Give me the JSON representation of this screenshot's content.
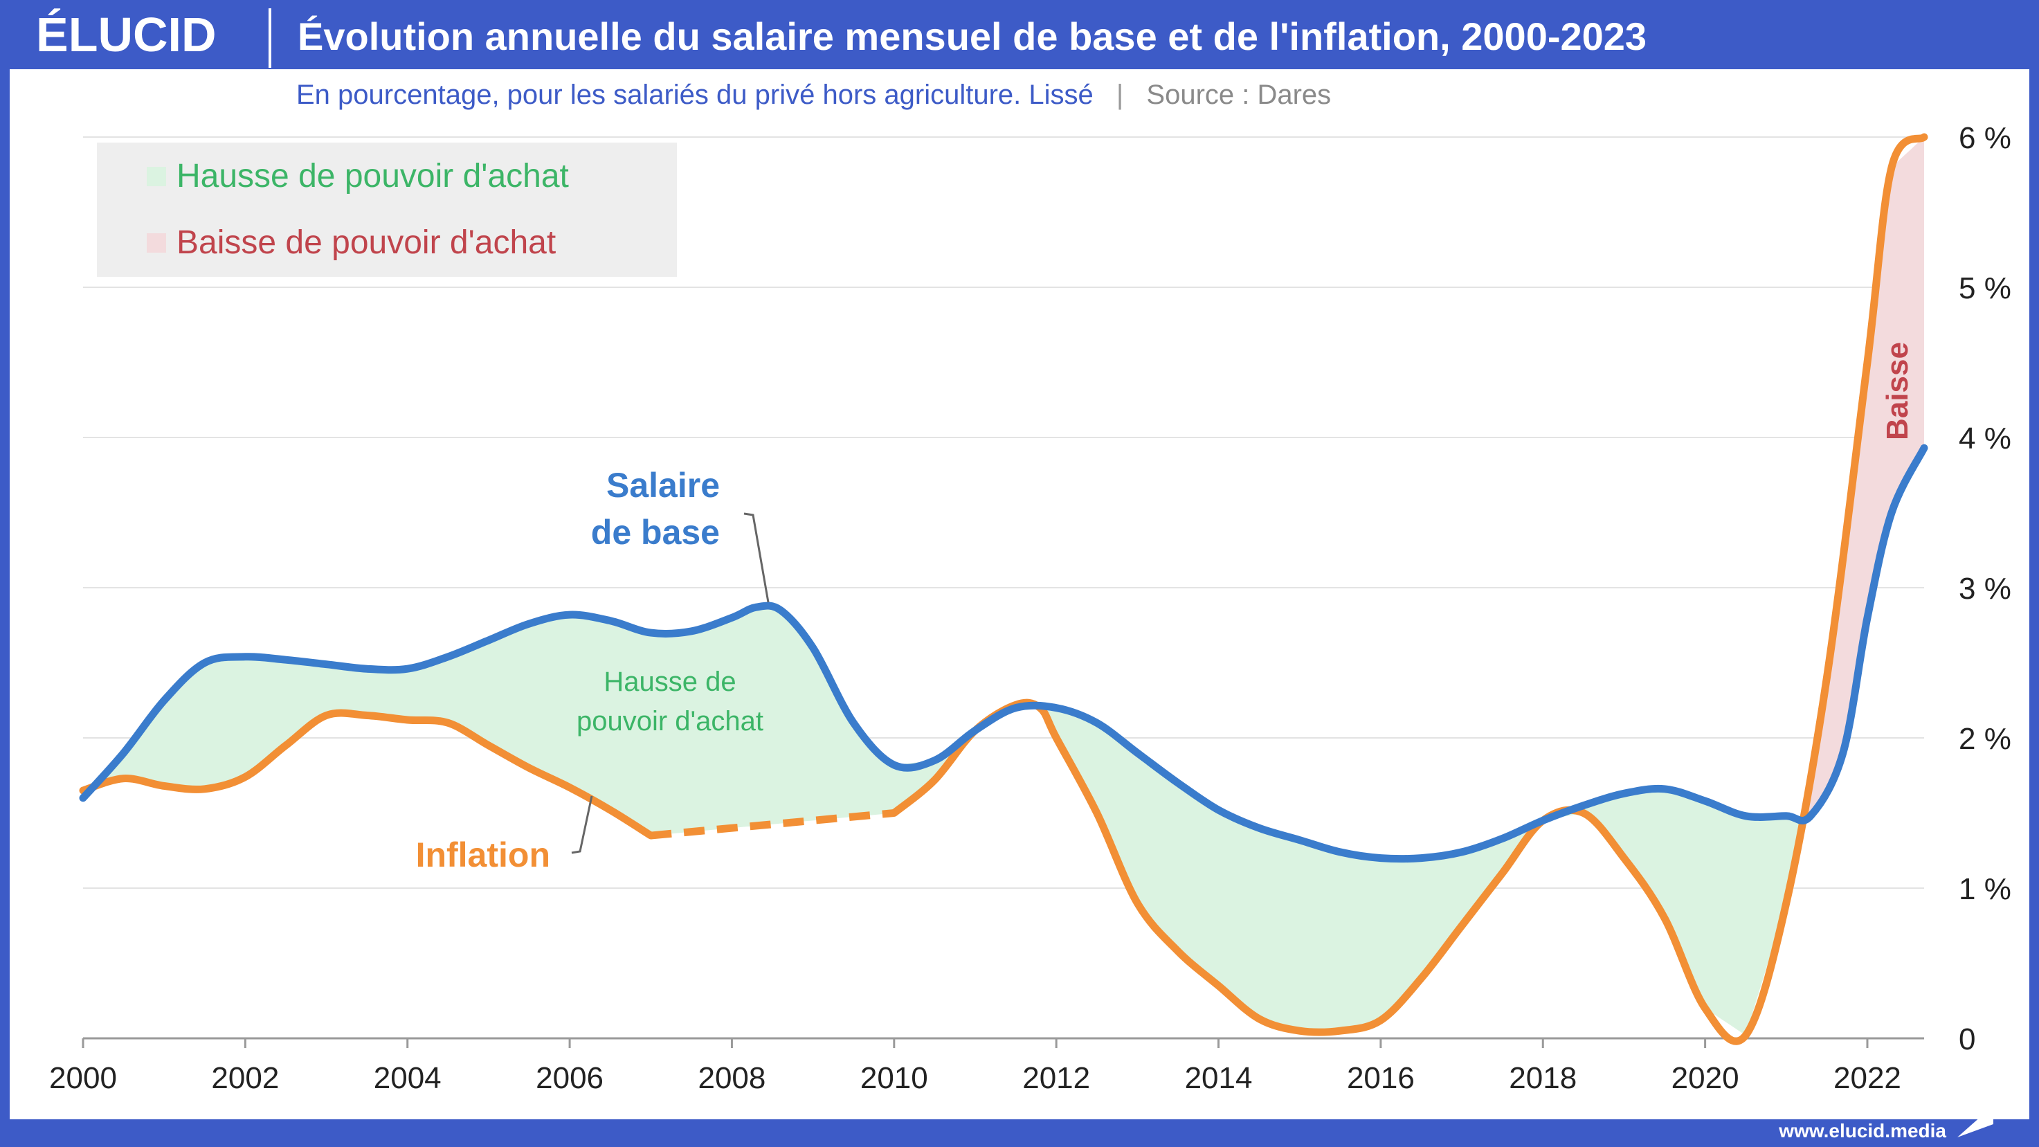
{
  "header": {
    "logo": "ÉLUCID",
    "title": "Évolution annuelle du salaire mensuel de base et de l'inflation, 2000-2023",
    "subtitle": "En pourcentage, pour les salariés du privé hors agriculture. Lissé",
    "separator": "|",
    "source": "Source : Dares"
  },
  "footer": {
    "url": "www.elucid.media"
  },
  "colors": {
    "frame": "#3d5bc7",
    "salary": "#3a7ccc",
    "inflation": "#f28f35",
    "gain_text": "#3cb567",
    "gain_fill": "#dbf3e1",
    "loss_text": "#c0444c",
    "loss_fill": "#f3dbdd",
    "legend_bg": "#eeeeee",
    "grid": "#e3e3e3"
  },
  "chart_data": {
    "type": "line",
    "title": "Évolution annuelle du salaire mensuel de base et de l'inflation, 2000-2023",
    "xlabel": "",
    "ylabel": "",
    "xlim": [
      2000,
      2022.7
    ],
    "ylim": [
      0,
      6
    ],
    "x_ticks": [
      2000,
      2002,
      2004,
      2006,
      2008,
      2010,
      2012,
      2014,
      2016,
      2018,
      2020,
      2022
    ],
    "y_ticks": [
      0,
      1,
      2,
      3,
      4,
      5,
      6
    ],
    "y_tick_labels": [
      "0",
      "1 %",
      "2 %",
      "3 %",
      "4 %",
      "5 %",
      "6 %"
    ],
    "grid": true,
    "legend_position": "top-left",
    "legend": [
      {
        "label": "Hausse de pouvoir d'achat",
        "kind": "gain"
      },
      {
        "label": "Baisse de pouvoir d'achat",
        "kind": "loss"
      }
    ],
    "series": [
      {
        "name": "Salaire de base",
        "label_lines": [
          "Salaire",
          "de base"
        ],
        "points": [
          [
            2000,
            1.6
          ],
          [
            2000.5,
            1.9
          ],
          [
            2001,
            2.25
          ],
          [
            2001.5,
            2.5
          ],
          [
            2002,
            2.54
          ],
          [
            2002.5,
            2.52
          ],
          [
            2003,
            2.49
          ],
          [
            2003.5,
            2.46
          ],
          [
            2004,
            2.46
          ],
          [
            2004.5,
            2.54
          ],
          [
            2005,
            2.65
          ],
          [
            2005.5,
            2.76
          ],
          [
            2006,
            2.82
          ],
          [
            2006.5,
            2.78
          ],
          [
            2007,
            2.7
          ],
          [
            2007.5,
            2.71
          ],
          [
            2008,
            2.8
          ],
          [
            2008.3,
            2.87
          ],
          [
            2008.6,
            2.85
          ],
          [
            2009,
            2.6
          ],
          [
            2009.5,
            2.1
          ],
          [
            2010,
            1.82
          ],
          [
            2010.5,
            1.85
          ],
          [
            2011,
            2.05
          ],
          [
            2011.5,
            2.2
          ],
          [
            2012,
            2.2
          ],
          [
            2012.5,
            2.1
          ],
          [
            2013,
            1.9
          ],
          [
            2013.5,
            1.7
          ],
          [
            2014,
            1.52
          ],
          [
            2014.5,
            1.4
          ],
          [
            2015,
            1.32
          ],
          [
            2015.5,
            1.24
          ],
          [
            2016,
            1.2
          ],
          [
            2016.5,
            1.2
          ],
          [
            2017,
            1.24
          ],
          [
            2017.5,
            1.33
          ],
          [
            2018,
            1.45
          ],
          [
            2018.5,
            1.55
          ],
          [
            2019,
            1.63
          ],
          [
            2019.5,
            1.66
          ],
          [
            2020,
            1.58
          ],
          [
            2020.5,
            1.48
          ],
          [
            2021,
            1.48
          ],
          [
            2021.3,
            1.48
          ],
          [
            2021.7,
            1.9
          ],
          [
            2022,
            2.8
          ],
          [
            2022.3,
            3.5
          ],
          [
            2022.7,
            3.93
          ]
        ]
      },
      {
        "name": "Inflation",
        "label_lines": [
          "Inflation"
        ],
        "estimated_range": [
          2007,
          2010
        ],
        "points": [
          [
            2000,
            1.65
          ],
          [
            2000.5,
            1.73
          ],
          [
            2001,
            1.68
          ],
          [
            2001.5,
            1.66
          ],
          [
            2002,
            1.74
          ],
          [
            2002.5,
            1.95
          ],
          [
            2003,
            2.15
          ],
          [
            2003.5,
            2.15
          ],
          [
            2004,
            2.12
          ],
          [
            2004.5,
            2.1
          ],
          [
            2005,
            1.95
          ],
          [
            2005.5,
            1.8
          ],
          [
            2006,
            1.67
          ],
          [
            2006.5,
            1.52
          ],
          [
            2007,
            1.35
          ],
          [
            2010,
            1.5
          ],
          [
            2010.5,
            1.72
          ],
          [
            2011,
            2.05
          ],
          [
            2011.5,
            2.22
          ],
          [
            2011.8,
            2.2
          ],
          [
            2012,
            2.0
          ],
          [
            2012.5,
            1.5
          ],
          [
            2013,
            0.9
          ],
          [
            2013.5,
            0.58
          ],
          [
            2014,
            0.35
          ],
          [
            2014.5,
            0.13
          ],
          [
            2015,
            0.05
          ],
          [
            2015.5,
            0.05
          ],
          [
            2016,
            0.12
          ],
          [
            2016.5,
            0.4
          ],
          [
            2017,
            0.75
          ],
          [
            2017.5,
            1.1
          ],
          [
            2018,
            1.45
          ],
          [
            2018.5,
            1.5
          ],
          [
            2019,
            1.2
          ],
          [
            2019.5,
            0.8
          ],
          [
            2020,
            0.2
          ],
          [
            2020.5,
            0.02
          ],
          [
            2021,
            0.9
          ],
          [
            2021.5,
            2.4
          ],
          [
            2022,
            4.5
          ],
          [
            2022.3,
            5.8
          ],
          [
            2022.7,
            6.0
          ]
        ]
      }
    ],
    "annotations": [
      {
        "text_lines": [
          "Hausse de",
          "pouvoir d'achat"
        ],
        "kind": "gain"
      },
      {
        "text": "Baisse",
        "kind": "loss"
      }
    ]
  }
}
